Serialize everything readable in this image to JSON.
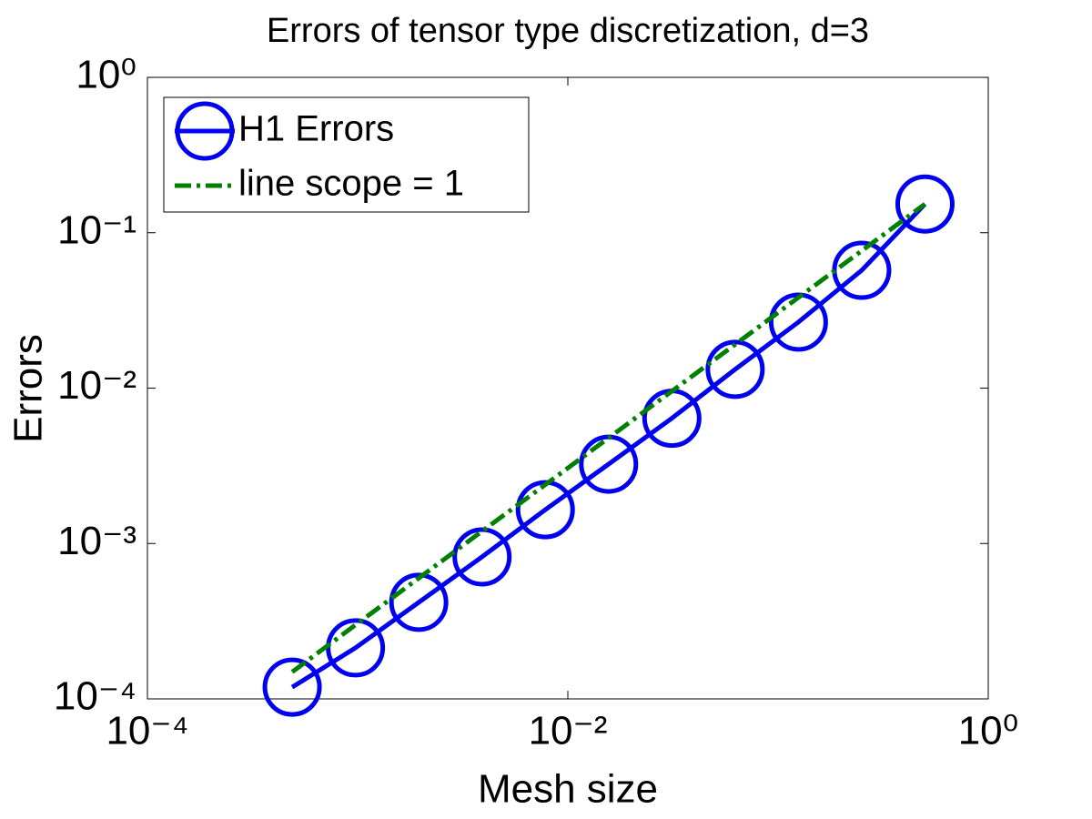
{
  "chart_data": {
    "type": "line",
    "title": "Errors of tensor type discretization, d=3",
    "x_label": "Mesh size",
    "y_label": "Errors",
    "xscale": "log",
    "yscale": "log",
    "x": [
      0.00048828125,
      0.0009765625,
      0.001953125,
      0.00390625,
      0.0078125,
      0.015625,
      0.03125,
      0.0625,
      0.125,
      0.25,
      0.5
    ],
    "series": [
      {
        "name": "H1 Errors",
        "color": "#0000f0",
        "marker": "circle",
        "linestyle": "solid",
        "values": [
          0.000119,
          0.000213,
          0.000418,
          0.00082,
          0.00165,
          0.00324,
          0.0064,
          0.0132,
          0.0266,
          0.0573,
          0.153
        ]
      },
      {
        "name": "line scope = 1",
        "color": "#008000",
        "marker": "none",
        "linestyle": "dashdot",
        "values": [
          0.000149,
          0.000299,
          0.000598,
          0.0012,
          0.00239,
          0.00478,
          0.00956,
          0.0191,
          0.0383,
          0.0765,
          0.153
        ]
      }
    ],
    "xlim": [
      0.0001,
      1
    ],
    "ylim": [
      0.0001,
      1
    ],
    "xticks": [
      {
        "value": 0.0001,
        "label": "10⁻⁴"
      },
      {
        "value": 0.01,
        "label": "10⁻²"
      },
      {
        "value": 1,
        "label": "10⁰"
      }
    ],
    "yticks": [
      {
        "value": 0.0001,
        "label": "10⁻⁴"
      },
      {
        "value": 0.001,
        "label": "10⁻³"
      },
      {
        "value": 0.01,
        "label": "10⁻²"
      },
      {
        "value": 0.1,
        "label": "10⁻¹"
      },
      {
        "value": 1,
        "label": "10⁰"
      }
    ],
    "grid": false,
    "legend": "upper left"
  }
}
